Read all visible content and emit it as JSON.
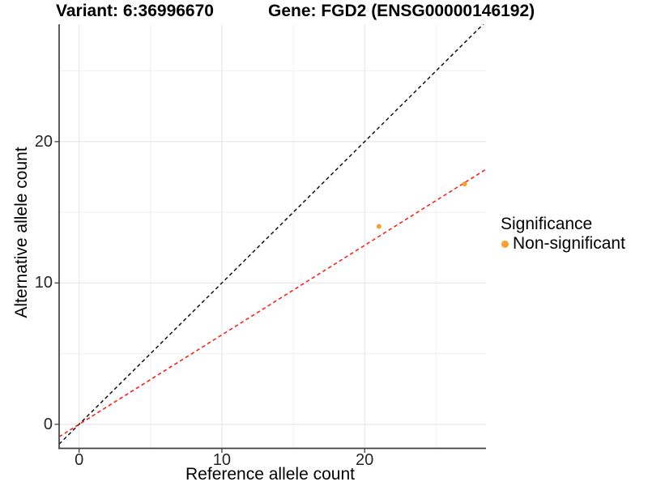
{
  "legend": {
    "title": "Significance",
    "items": [
      {
        "label": "Non-significant",
        "color": "#F9A02E"
      }
    ]
  },
  "chart_data": {
    "type": "scatter",
    "titles": [
      "Variant: 6:36996670",
      "Gene: FGD2 (ENSG00000146192)"
    ],
    "xlabel": "Reference allele count",
    "ylabel": "Alternative allele count",
    "xlim": [
      -1.4,
      28.5
    ],
    "ylim": [
      -1.7,
      28.3
    ],
    "x_major_ticks": [
      0,
      10,
      20
    ],
    "x_minor_ticks": [
      5,
      15,
      25
    ],
    "y_major_ticks": [
      0,
      10,
      20
    ],
    "y_minor_ticks": [
      5,
      15,
      25
    ],
    "grid": "major+minor",
    "legend_position": "right",
    "series": [
      {
        "name": "Non-significant",
        "marker": "circle",
        "color": "#F9A02E",
        "points": [
          {
            "x": 21,
            "y": 14
          },
          {
            "x": 27,
            "y": 17
          }
        ]
      }
    ],
    "reference_lines": [
      {
        "name": "identity-line",
        "equation": "y = x",
        "slope": 1,
        "intercept": 0,
        "color": "#111111",
        "style": "dashed"
      },
      {
        "name": "fit-line",
        "equation": "y = 0.63x",
        "slope": 0.633,
        "intercept": 0,
        "color": "#FF1510",
        "style": "dashed"
      }
    ]
  },
  "colors": {
    "background": "#FFFFFF",
    "grid_major": "#E6E6E6",
    "grid_minor": "#F1F1F1",
    "axis_line": "#404040",
    "tick_text": "#262626"
  }
}
